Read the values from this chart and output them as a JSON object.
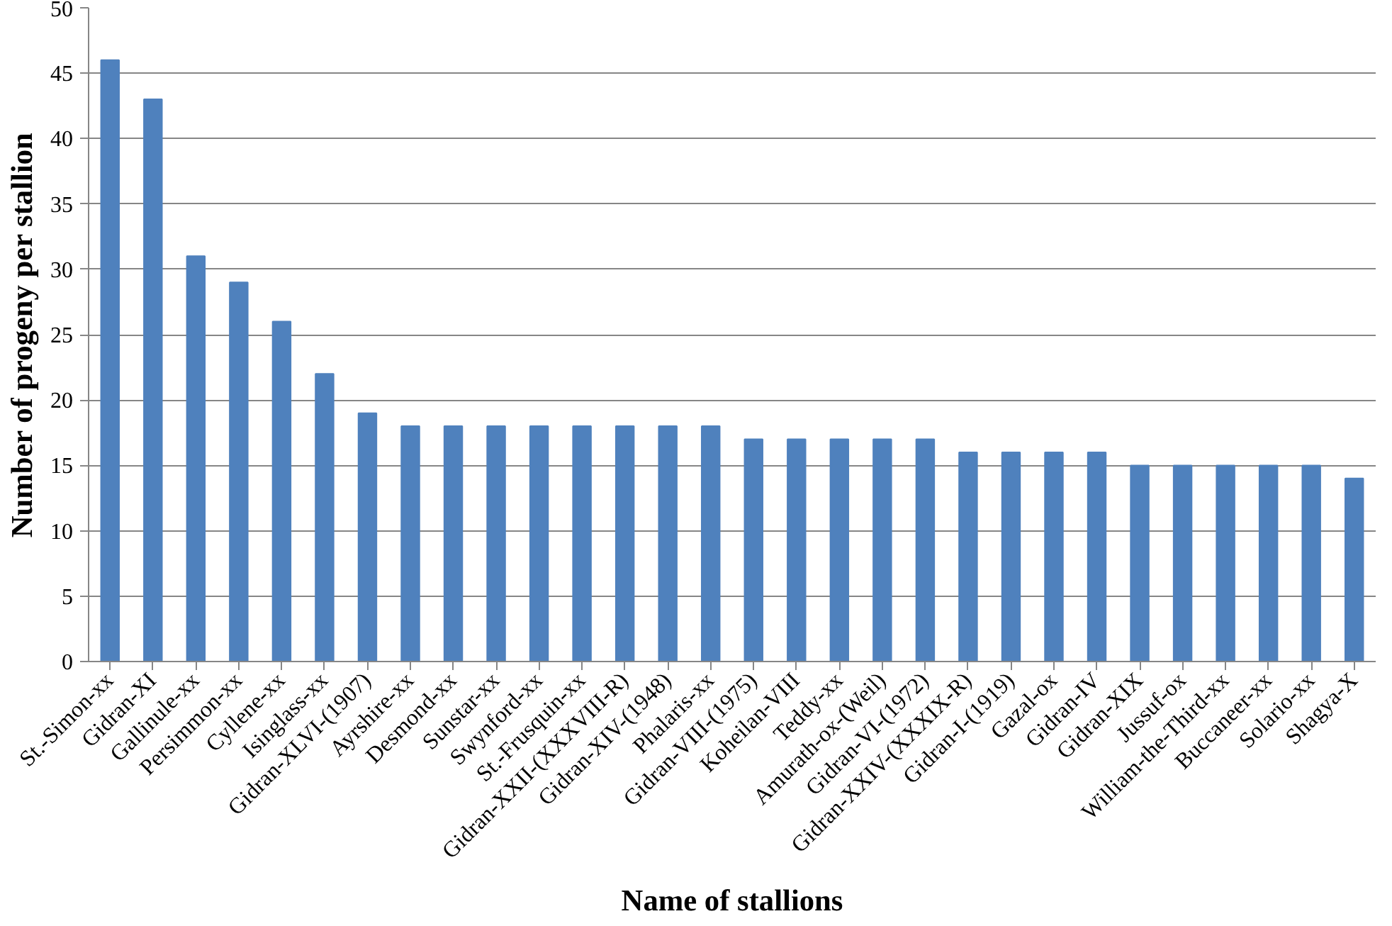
{
  "chart_data": {
    "type": "bar",
    "xlabel": "Name of stallions",
    "ylabel": "Number of progeny per stallion",
    "categories": [
      "St.-Simon-xx",
      "Gidran-XI",
      "Gallinule-xx",
      "Persimmon-xx",
      "Cyllene-xx",
      "Isinglass-xx",
      "Gidran-XLVI-(1907)",
      "Ayrshire-xx",
      "Desmond-xx",
      "Sunstar-xx",
      "Swynford-xx",
      "St.-Frusquin-xx",
      "Gidran-XXII-(XXXVIII-R)",
      "Gidran-XIV-(1948)",
      "Phalaris-xx",
      "Gidran-VIII-(1975)",
      "Koheilan-VIII",
      "Teddy-xx",
      "Amurath-ox-(Weil)",
      "Gidran-VI-(1972)",
      "Gidran-XXIV-(XXXIX-R)",
      "Gidran-I-(1919)",
      "Gazal-ox",
      "Gidran-IV",
      "Gidran-XIX",
      "Jussuf-ox",
      "William-the-Third-xx",
      "Buccaneer-xx",
      "Solario-xx",
      "Shagya-X"
    ],
    "values": [
      46,
      43,
      31,
      29,
      26,
      22,
      19,
      18,
      18,
      18,
      18,
      18,
      18,
      18,
      18,
      17,
      17,
      17,
      17,
      17,
      16,
      16,
      16,
      16,
      15,
      15,
      15,
      15,
      15,
      14
    ],
    "color": "#4f81bd",
    "ylim": [
      0,
      50
    ],
    "yticks": [
      0,
      5,
      10,
      15,
      20,
      25,
      30,
      35,
      40,
      45,
      50
    ],
    "grid": "y"
  }
}
